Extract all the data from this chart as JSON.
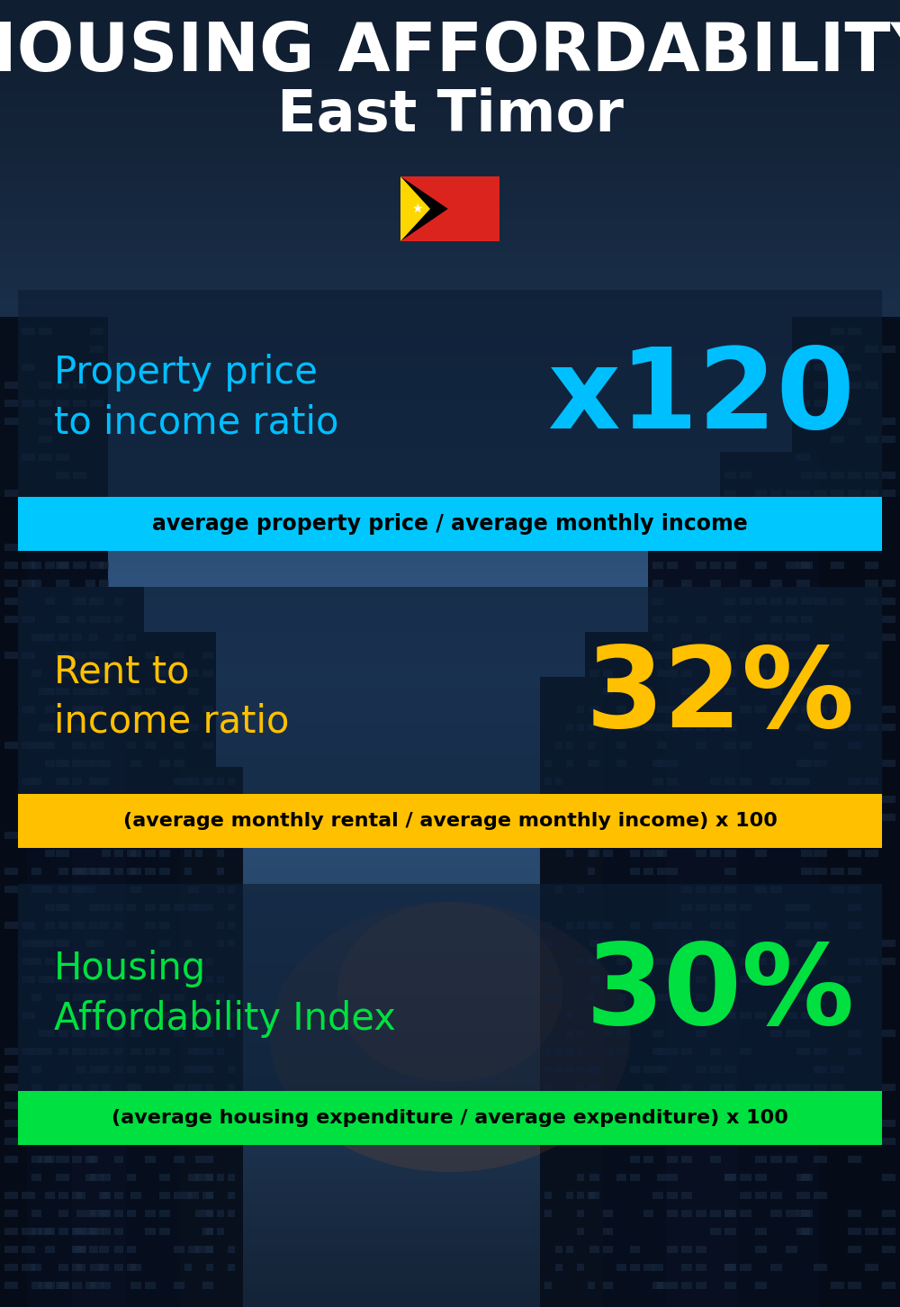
{
  "title_line1": "HOUSING AFFORDABILITY",
  "title_line2": "East Timor",
  "bg_color": "#060d18",
  "section1_label": "Property price\nto income ratio",
  "section1_value": "x120",
  "section1_label_color": "#00bfff",
  "section1_value_color": "#00bfff",
  "section1_formula": "average property price / average monthly income",
  "section1_formula_bg": "#00c8ff",
  "section2_label": "Rent to\nincome ratio",
  "section2_value": "32%",
  "section2_label_color": "#ffc000",
  "section2_value_color": "#ffc000",
  "section2_formula": "(average monthly rental / average monthly income) x 100",
  "section2_formula_bg": "#ffc000",
  "section3_label": "Housing\nAffordability Index",
  "section3_value": "30%",
  "section3_label_color": "#00e040",
  "section3_value_color": "#00e040",
  "section3_formula": "(average housing expenditure / average expenditure) x 100",
  "section3_formula_bg": "#00e040",
  "panel_color": "#0d1a2e",
  "panel_alpha": 0.72
}
